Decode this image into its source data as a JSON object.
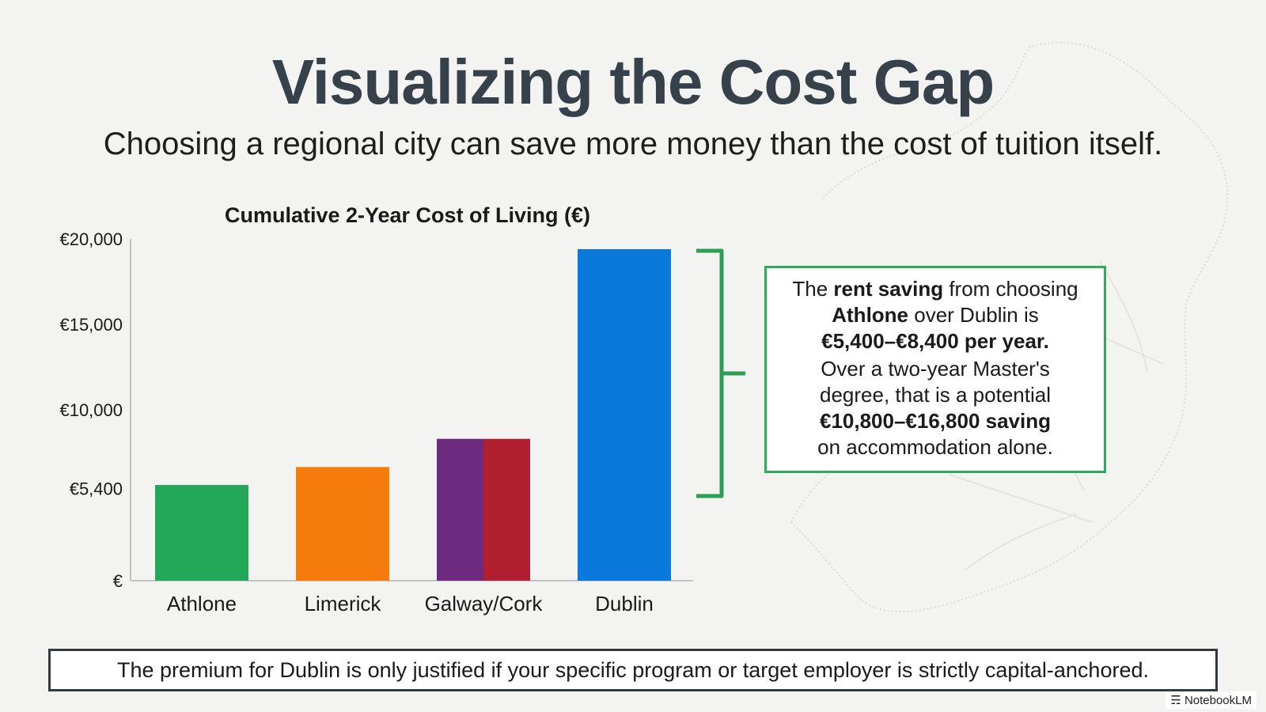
{
  "slide": {
    "title": "Visualizing the Cost Gap",
    "subtitle": "Choosing a regional city can save more money than the cost of tuition itself.",
    "callout": {
      "l1a": "The ",
      "l1b": "rent saving",
      "l1c": " from choosing",
      "l2a": "Athlone",
      "l2b": " over Dublin is",
      "l3": "€5,400–€8,400 per year.",
      "l4": "Over a two-year Master's",
      "l5": "degree, that is a potential",
      "l6": "€10,800–€16,800 saving",
      "l7": "on accommodation alone."
    },
    "footer": "The premium for Dublin is only justified if your specific program or target employer is strictly capital-anchored.",
    "brand": "NotebookLM"
  },
  "colors": {
    "athlone": "#23a85a",
    "limerick": "#f47b0c",
    "galway": "#6e2a7f",
    "cork": "#b01e2f",
    "dublin": "#0b78dc",
    "bracket": "#2e9e57",
    "axis": "#9e9e9e"
  },
  "chart_data": {
    "type": "bar",
    "title": "Cumulative 2-Year Cost of Living (€)",
    "categories": [
      "Athlone",
      "Limerick",
      "Galway/Cork",
      "Dublin"
    ],
    "values": [
      5600,
      6650,
      8300,
      19400
    ],
    "split_bar": {
      "category": "Galway/Cork",
      "segments": [
        "galway",
        "cork"
      ]
    },
    "yticks": [
      0,
      5400,
      10000,
      15000,
      20000
    ],
    "ytick_labels": [
      "€",
      "€5,400",
      "€10,000",
      "€15,000",
      "€20,000"
    ],
    "ylim": [
      0,
      20000
    ],
    "xlabel": "",
    "ylabel": "",
    "grid": false
  }
}
